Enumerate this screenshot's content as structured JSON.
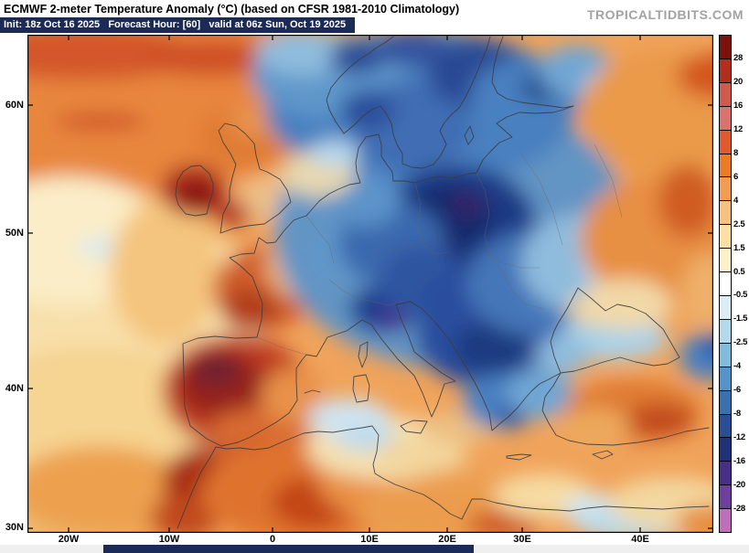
{
  "header": {
    "title": "ECMWF 2-meter Temperature Anomaly (°C) (based on CFSR 1981-2010 Climatology)",
    "init_line": "Init: 18z Oct 16 2025   Forecast Hour: [60]   valid at 06z Sun, Oct 19 2025",
    "watermark": "TROPICALTIDBITS.COM"
  },
  "map": {
    "lat_labels": [
      "60N",
      "50N",
      "40N",
      "30N"
    ],
    "lon_labels": [
      "20W",
      "10W",
      "0",
      "10E",
      "20E",
      "30E",
      "40E"
    ],
    "anomaly_regions": [
      {
        "region": "Iberia and Morocco",
        "anomaly_c": "+8 to +16"
      },
      {
        "region": "Ireland and western Britain",
        "anomaly_c": "+6 to +12"
      },
      {
        "region": "Northeast Atlantic",
        "anomaly_c": "+2 to +8"
      },
      {
        "region": "Poland, Baltics and central Europe",
        "anomaly_c": "-8 to -16"
      },
      {
        "region": "Scandinavia, Alps and Balkans",
        "anomaly_c": "-4 to -8"
      },
      {
        "region": "Western Russia",
        "anomaly_c": "+2 to +6"
      },
      {
        "region": "Turkey and interior North Africa",
        "anomaly_c": "+4 to +8"
      }
    ]
  },
  "colorbar": {
    "unit": "°C",
    "labels": [
      "28",
      "20",
      "16",
      "12",
      "8",
      "6",
      "4",
      "2.5",
      "1.5",
      "0.5",
      "-0.5",
      "-1.5",
      "-2.5",
      "-4",
      "-6",
      "-8",
      "-12",
      "-16",
      "-20",
      "-28"
    ],
    "colors": [
      "#7c120c",
      "#b22f1f",
      "#d05a4e",
      "#d8736f",
      "#e0592f",
      "#ec7b28",
      "#f29d52",
      "#f8c27e",
      "#fcdfa4",
      "#fdf1cb",
      "#ffffff",
      "#dcedf5",
      "#b5d9ec",
      "#82bcdd",
      "#5593c9",
      "#3a6fb0",
      "#2a4d96",
      "#1f3178",
      "#463087",
      "#6f3f9e",
      "#bd6fba"
    ]
  },
  "colors": {
    "header_bar": "#1b2a57",
    "progress_fill": "#1b2a57",
    "watermark": "#a3a3a3"
  }
}
